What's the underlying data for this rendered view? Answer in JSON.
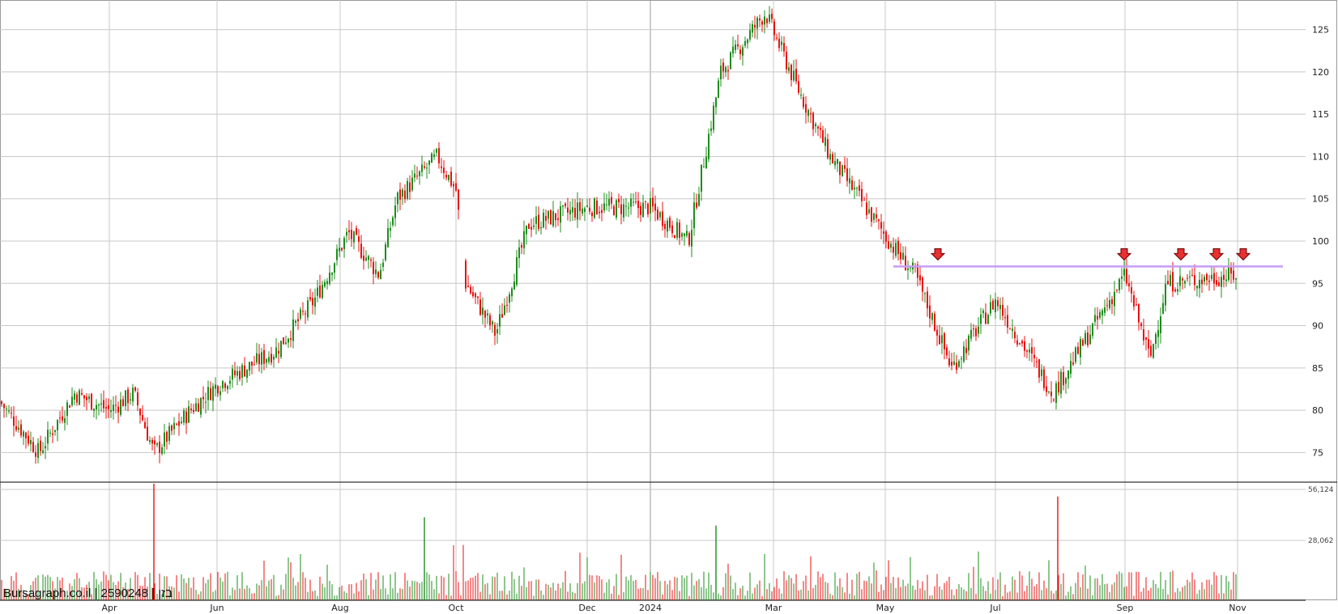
{
  "watermark": "Bursagraph.co.il | 2590248 | בזן",
  "chart_data": {
    "type": "candlestick",
    "title": "",
    "x_ticks": [
      "Apr",
      "Jun",
      "Aug",
      "Oct",
      "Dec",
      "2024",
      "Mar",
      "May",
      "Jul",
      "Sep",
      "Nov"
    ],
    "price_ticks": [
      125,
      120,
      115,
      110,
      105,
      100,
      95,
      90,
      85,
      80,
      75
    ],
    "price_range": [
      71.5,
      128.5
    ],
    "volume_ticks": [
      "56,124",
      "28,062"
    ],
    "volume_range": [
      0,
      56124
    ],
    "resistance_level": 97.0,
    "price_path": [
      {
        "t": "start",
        "close": 81
      },
      {
        "t": "Mar",
        "close": 75
      },
      {
        "t": "mid-Mar",
        "close": 82
      },
      {
        "t": "Apr",
        "close": 80
      },
      {
        "t": "mid-Apr",
        "close": 82
      },
      {
        "t": "late-Apr",
        "close": 75
      },
      {
        "t": "May",
        "close": 80
      },
      {
        "t": "Jun",
        "close": 83
      },
      {
        "t": "Jul",
        "close": 87
      },
      {
        "t": "mid-Jul",
        "close": 93
      },
      {
        "t": "Aug",
        "close": 101
      },
      {
        "t": "mid-Aug",
        "close": 96
      },
      {
        "t": "Sep",
        "close": 105
      },
      {
        "t": "late-Sep",
        "close": 110
      },
      {
        "t": "Oct",
        "close": 106
      },
      {
        "t": "early-Oct",
        "close": 95
      },
      {
        "t": "mid-Oct",
        "close": 89
      },
      {
        "t": "Nov",
        "close": 102
      },
      {
        "t": "Dec",
        "close": 104
      },
      {
        "t": "2024",
        "close": 104
      },
      {
        "t": "Jan",
        "close": 100
      },
      {
        "t": "Feb",
        "close": 120
      },
      {
        "t": "Mar",
        "close": 127
      },
      {
        "t": "mid-Mar",
        "close": 118
      },
      {
        "t": "Apr",
        "close": 110
      },
      {
        "t": "May",
        "close": 99
      },
      {
        "t": "mid-May",
        "close": 96
      },
      {
        "t": "Jun",
        "close": 85
      },
      {
        "t": "Jul",
        "close": 93
      },
      {
        "t": "Aug",
        "close": 82
      },
      {
        "t": "Sep",
        "close": 96
      },
      {
        "t": "mid-Sep",
        "close": 86
      },
      {
        "t": "Oct",
        "close": 95
      },
      {
        "t": "Nov",
        "close": 96
      }
    ],
    "volume_spikes": [
      {
        "t": "late-Apr",
        "value": 56124,
        "color": "red"
      },
      {
        "t": "Sep",
        "value": 40000,
        "color": "green"
      },
      {
        "t": "Feb",
        "value": 36000,
        "color": "green"
      },
      {
        "t": "Aug",
        "value": 50000,
        "color": "red"
      }
    ],
    "colors": {
      "up": "#1e8c1e",
      "down": "#e81010",
      "resistance": "#c79cf4",
      "arrow": "#e83030",
      "grid": "#c8c8c8"
    }
  }
}
